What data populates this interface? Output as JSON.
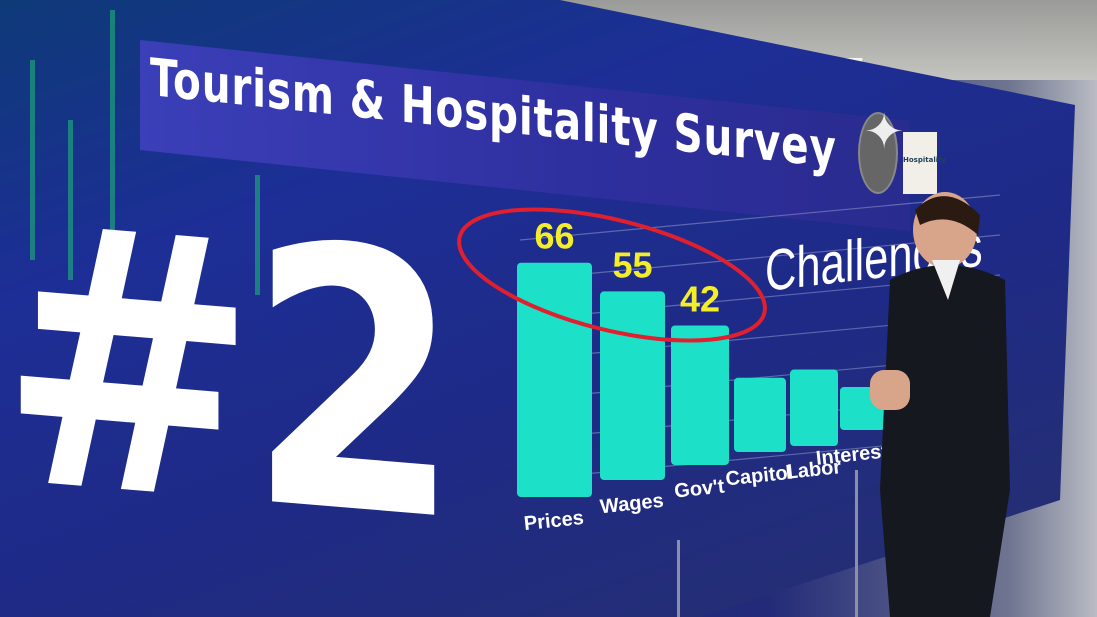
{
  "title": "Tourism & Hospitality Survey",
  "rank": "#2",
  "logos": {
    "left": "eagle-emblem",
    "right": "Hospitality"
  },
  "chart_data": {
    "type": "bar",
    "title": "Challenges",
    "categories": [
      "Prices",
      "Wages",
      "Gov't",
      "Capitol",
      "Labor",
      "Interest R"
    ],
    "values": [
      66,
      55,
      42,
      23,
      24,
      14
    ],
    "data_labels": [
      "66",
      "55",
      "42",
      "",
      "",
      ""
    ],
    "highlighted": [
      "Prices",
      "Wages",
      "Gov't"
    ],
    "bar_color": "#1de0c8",
    "label_color": "#f4ee2a",
    "highlight_color": "#e0202e",
    "grid": true
  }
}
